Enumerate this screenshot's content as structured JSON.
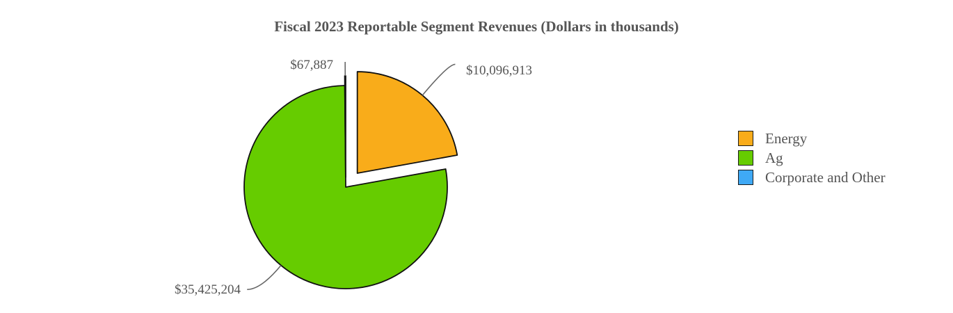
{
  "chart_data": {
    "type": "pie",
    "title": "Fiscal 2023 Reportable Segment Revenues (Dollars in thousands)",
    "series": [
      {
        "name": "Energy",
        "value": 10096913,
        "label": "$10,096,913",
        "color": "#f9ac1a"
      },
      {
        "name": "Ag",
        "value": 35425204,
        "label": "$35,425,204",
        "color": "#66cc00"
      },
      {
        "name": "Corporate and Other",
        "value": 67887,
        "label": "$67,887",
        "color": "#3fa9f5"
      }
    ],
    "legend_position": "right",
    "exploded": true
  }
}
